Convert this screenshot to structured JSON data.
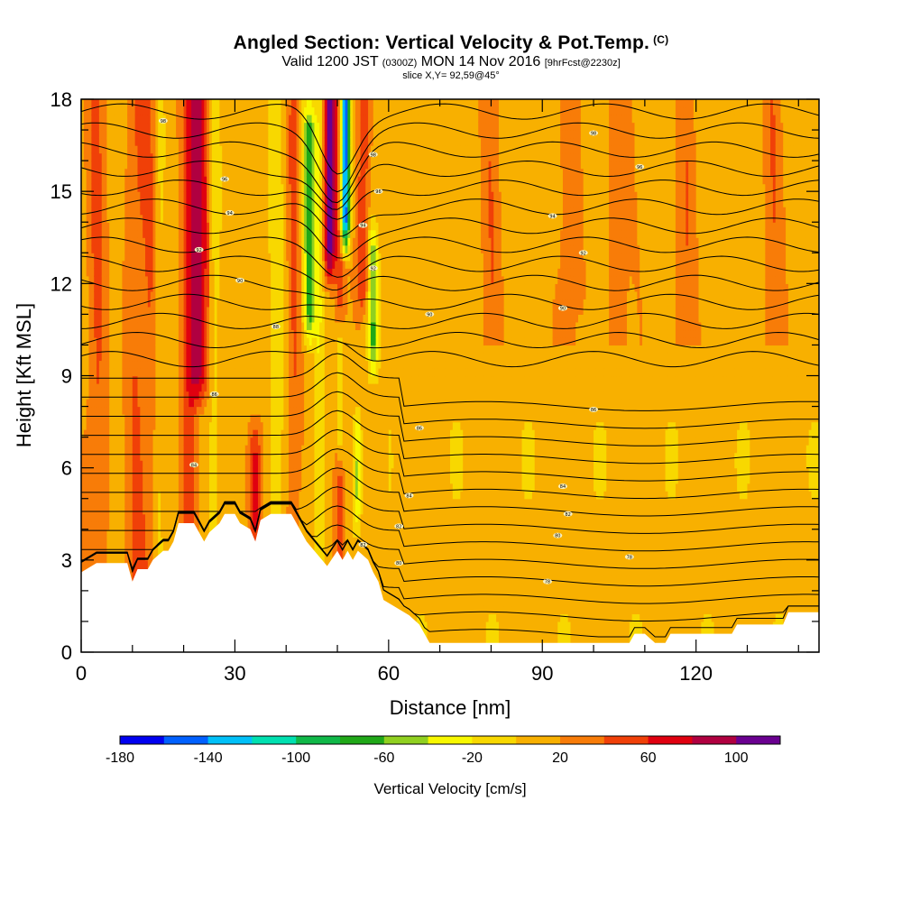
{
  "header": {
    "title": "Angled Section: Vertical Velocity & Pot.Temp.",
    "title_units": "(C)",
    "valid_prefix": "Valid 1200 JST",
    "valid_utc": "(0300Z)",
    "valid_date": "MON 14 Nov 2016",
    "forecast": "[9hrFcst@2230z]",
    "slice": "slice X,Y= 92,59@45°"
  },
  "chart_data": {
    "type": "heatmap",
    "xlabel": "Distance [nm]",
    "ylabel": "Height [Kft MSL]",
    "xlim": [
      0,
      144
    ],
    "ylim": [
      0,
      18
    ],
    "x_ticks": [
      "0",
      "30",
      "60",
      "90",
      "120"
    ],
    "y_ticks": [
      "0",
      "3",
      "6",
      "9",
      "12",
      "15",
      "18"
    ],
    "x_tick_values": [
      0,
      30,
      60,
      90,
      120
    ],
    "y_tick_values": [
      0,
      3,
      6,
      9,
      12,
      15,
      18
    ],
    "colorbar": {
      "title": "Vertical Velocity [cm/s]",
      "min": -180,
      "max": 120,
      "step": 20,
      "tick_labels": [
        "-180",
        "-140",
        "-100",
        "-60",
        "-20",
        "20",
        "60",
        "100"
      ],
      "tick_values": [
        -180,
        -140,
        -100,
        -60,
        -20,
        20,
        60,
        100
      ],
      "colors": [
        "#0000f0",
        "#0060ff",
        "#00c0f8",
        "#00e0b0",
        "#10b848",
        "#20a818",
        "#90d020",
        "#f8f800",
        "#f8d800",
        "#f8b000",
        "#f87c08",
        "#f04008",
        "#e00010",
        "#b00040",
        "#6a0090"
      ]
    },
    "terrain_kft": [
      [
        0,
        2.6
      ],
      [
        3,
        2.9
      ],
      [
        9,
        2.9
      ],
      [
        10,
        2.3
      ],
      [
        11,
        2.7
      ],
      [
        13,
        2.7
      ],
      [
        14,
        3.0
      ],
      [
        16,
        3.3
      ],
      [
        17,
        3.3
      ],
      [
        18,
        3.6
      ],
      [
        19,
        4.2
      ],
      [
        22,
        4.2
      ],
      [
        24,
        3.6
      ],
      [
        25,
        3.9
      ],
      [
        27,
        4.2
      ],
      [
        28,
        4.5
      ],
      [
        30,
        4.5
      ],
      [
        31,
        4.2
      ],
      [
        33,
        4.0
      ],
      [
        34,
        3.6
      ],
      [
        35,
        4.3
      ],
      [
        37,
        4.5
      ],
      [
        41,
        4.5
      ],
      [
        42,
        4.2
      ],
      [
        44,
        3.6
      ],
      [
        45,
        3.4
      ],
      [
        46,
        3.2
      ],
      [
        47,
        3.0
      ],
      [
        48,
        2.8
      ],
      [
        50,
        3.3
      ],
      [
        51,
        3.0
      ],
      [
        52,
        3.3
      ],
      [
        53,
        3.0
      ],
      [
        54,
        3.3
      ],
      [
        56,
        3.0
      ],
      [
        57,
        2.6
      ],
      [
        58,
        2.3
      ],
      [
        59,
        1.7
      ],
      [
        61,
        1.5
      ],
      [
        64,
        1.2
      ],
      [
        66,
        0.9
      ],
      [
        67,
        0.6
      ],
      [
        68,
        0.3
      ],
      [
        107,
        0.3
      ],
      [
        108,
        0.6
      ],
      [
        110,
        0.6
      ],
      [
        112,
        0.3
      ],
      [
        114,
        0.3
      ],
      [
        115,
        0.6
      ],
      [
        127,
        0.6
      ],
      [
        128,
        0.9
      ],
      [
        137,
        0.9
      ],
      [
        138,
        1.3
      ],
      [
        144,
        1.3
      ]
    ],
    "updraft_bands": [
      {
        "x": 3,
        "w": 2,
        "peak": 30
      },
      {
        "x": 11,
        "w": 2.2,
        "peak": 30
      },
      {
        "x": 14,
        "w": 1.5,
        "peak": 25
      },
      {
        "x": 23,
        "w": 1.8,
        "peak": 70,
        "top": 18,
        "bottom": 9
      },
      {
        "x": 21,
        "w": 1.6,
        "peak": 40
      },
      {
        "x": 34,
        "w": 1.4,
        "peak": 50,
        "top": 6.5,
        "bottom": 4
      },
      {
        "x": 41.5,
        "w": 1.3,
        "peak": 30
      },
      {
        "x": 48.5,
        "w": 1.2,
        "peak": 100,
        "top": 18,
        "bottom": 13
      },
      {
        "x": 50.5,
        "w": 1.0,
        "peak": 40
      },
      {
        "x": 55,
        "w": 1.2,
        "peak": 50,
        "top": 18,
        "bottom": 12
      },
      {
        "x": 80,
        "w": 2,
        "peak": 22
      },
      {
        "x": 95,
        "w": 2,
        "peak": 22
      },
      {
        "x": 105,
        "w": 2,
        "peak": 22
      },
      {
        "x": 118,
        "w": 2,
        "peak": 25
      },
      {
        "x": 135,
        "w": 2,
        "peak": 22
      }
    ],
    "downdraft_bands": [
      {
        "x": 44.5,
        "w": 1.2,
        "peak": -80,
        "top": 17,
        "bottom": 11
      },
      {
        "x": 46.5,
        "w": 1.0,
        "peak": -30
      },
      {
        "x": 51.5,
        "w": 0.9,
        "peak": -180,
        "top": 18,
        "bottom": 14
      },
      {
        "x": 57,
        "w": 1.0,
        "peak": -70,
        "top": 13,
        "bottom": 10
      },
      {
        "x": 50.5,
        "w": 0.8,
        "peak": -60,
        "top": 10,
        "bottom": 7
      },
      {
        "x": 54,
        "w": 0.8,
        "peak": -60,
        "top": 7,
        "bottom": 5
      },
      {
        "x": 15,
        "w": 1.2,
        "peak": -25
      },
      {
        "x": 26,
        "w": 1.0,
        "peak": -25
      },
      {
        "x": 38,
        "w": 1.5,
        "peak": -25
      }
    ],
    "theta_contour_labels": [
      {
        "x": 16,
        "y": 17.3,
        "text": "98"
      },
      {
        "x": 28,
        "y": 15.4,
        "text": "96"
      },
      {
        "x": 29,
        "y": 14.3,
        "text": "94"
      },
      {
        "x": 23,
        "y": 13.1,
        "text": "92"
      },
      {
        "x": 31,
        "y": 12.1,
        "text": "90"
      },
      {
        "x": 38,
        "y": 10.6,
        "text": "88"
      },
      {
        "x": 26,
        "y": 8.4,
        "text": "86"
      },
      {
        "x": 22,
        "y": 6.1,
        "text": "84"
      },
      {
        "x": 57,
        "y": 16.2,
        "text": "98"
      },
      {
        "x": 58,
        "y": 15.0,
        "text": "96"
      },
      {
        "x": 55,
        "y": 13.9,
        "text": "94"
      },
      {
        "x": 57,
        "y": 12.5,
        "text": "92"
      },
      {
        "x": 68,
        "y": 11.0,
        "text": "90"
      },
      {
        "x": 66,
        "y": 7.3,
        "text": "86"
      },
      {
        "x": 64,
        "y": 5.1,
        "text": "84"
      },
      {
        "x": 62,
        "y": 4.1,
        "text": "82"
      },
      {
        "x": 62,
        "y": 2.9,
        "text": "80"
      },
      {
        "x": 55,
        "y": 3.5,
        "text": "82"
      },
      {
        "x": 100,
        "y": 16.9,
        "text": "98"
      },
      {
        "x": 109,
        "y": 15.8,
        "text": "96"
      },
      {
        "x": 92,
        "y": 14.2,
        "text": "94"
      },
      {
        "x": 98,
        "y": 13.0,
        "text": "92"
      },
      {
        "x": 94,
        "y": 11.2,
        "text": "90"
      },
      {
        "x": 100,
        "y": 7.9,
        "text": "86"
      },
      {
        "x": 94,
        "y": 5.4,
        "text": "84"
      },
      {
        "x": 95,
        "y": 4.5,
        "text": "82"
      },
      {
        "x": 93,
        "y": 3.8,
        "text": "80"
      },
      {
        "x": 107,
        "y": 3.1,
        "text": "78"
      },
      {
        "x": 91,
        "y": 2.3,
        "text": "78"
      }
    ]
  }
}
